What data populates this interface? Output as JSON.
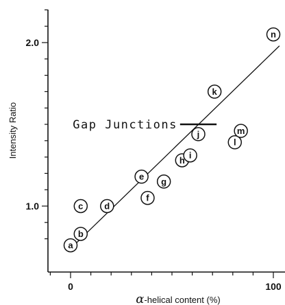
{
  "chart_data": {
    "type": "scatter",
    "title": "",
    "xlabel": {
      "symbol": "α",
      "text": "-helical content (%)"
    },
    "ylabel": "Intensity Ratio",
    "xlim": [
      -10,
      104
    ],
    "ylim": [
      0.7,
      2.2
    ],
    "x_ticks": [
      {
        "value": 0,
        "label": "0"
      },
      {
        "value": 100,
        "label": "100"
      }
    ],
    "y_ticks": [
      {
        "value": 1.0,
        "label": "1.0"
      },
      {
        "value": 2.0,
        "label": "2.0"
      }
    ],
    "grid": false,
    "points": [
      {
        "label": "a",
        "x": 0,
        "y": 0.76
      },
      {
        "label": "b",
        "x": 5,
        "y": 0.83
      },
      {
        "label": "c",
        "x": 5,
        "y": 1.0
      },
      {
        "label": "d",
        "x": 18,
        "y": 1.0
      },
      {
        "label": "e",
        "x": 35,
        "y": 1.18
      },
      {
        "label": "f",
        "x": 38,
        "y": 1.05
      },
      {
        "label": "g",
        "x": 46,
        "y": 1.15
      },
      {
        "label": "h",
        "x": 55,
        "y": 1.28
      },
      {
        "label": "i",
        "x": 59,
        "y": 1.31
      },
      {
        "label": "j",
        "x": 63,
        "y": 1.44
      },
      {
        "label": "k",
        "x": 71,
        "y": 1.7
      },
      {
        "label": "l",
        "x": 81,
        "y": 1.39
      },
      {
        "label": "m",
        "x": 84,
        "y": 1.46
      },
      {
        "label": "n",
        "x": 100,
        "y": 2.05
      }
    ],
    "fit_line": {
      "x": [
        0,
        103
      ],
      "y": [
        0.74,
        1.98
      ]
    },
    "annotation": {
      "text": "Gap Junctions",
      "x_start": 54,
      "x_end": 72,
      "y": 1.5
    }
  }
}
